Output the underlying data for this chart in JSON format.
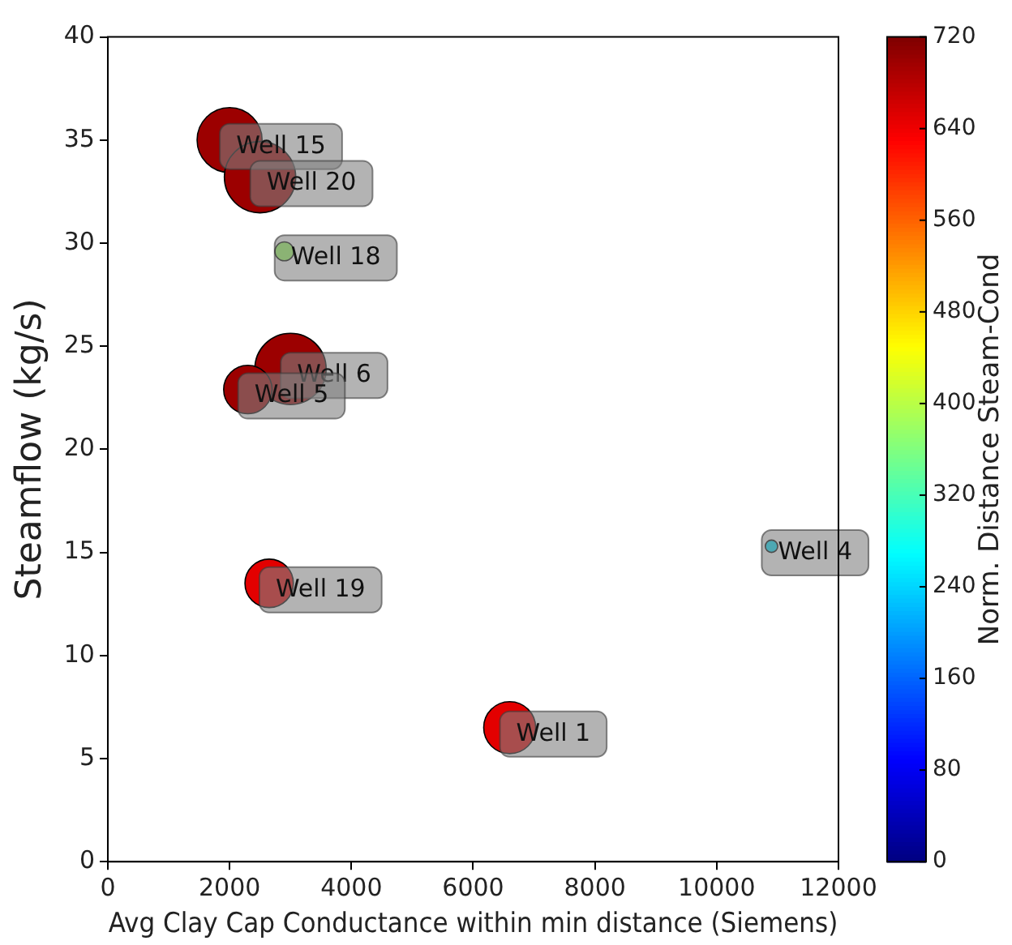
{
  "chart_data": {
    "type": "bubble",
    "xlabel": "Avg Clay Cap Conductance within min distance (Siemens)",
    "ylabel": "Steamflow (kg/s)",
    "clabel": "Norm. Distance Steam-Cond",
    "x": [
      2000,
      2500,
      2900,
      3000,
      2300,
      2650,
      6600,
      10900
    ],
    "values": [
      35,
      33.2,
      29.6,
      23.9,
      22.9,
      13.5,
      6.5,
      15.3
    ],
    "sizes": [
      0.83,
      1,
      0.07,
      1,
      0.46,
      0.46,
      0.53,
      0.03
    ],
    "cvalues": [
      700,
      700,
      380,
      700,
      700,
      650,
      650,
      250
    ],
    "clim": [
      0,
      720
    ],
    "cticks": [
      0,
      80,
      160,
      240,
      320,
      400,
      480,
      560,
      640,
      720
    ],
    "xlim": [
      0,
      12000
    ],
    "xticks": [
      0,
      2000,
      4000,
      6000,
      8000,
      10000,
      12000
    ],
    "ylim": [
      0,
      40
    ],
    "yticks": [
      0,
      5,
      10,
      15,
      20,
      25,
      30,
      35,
      40
    ],
    "grid": false,
    "legend": false,
    "annotations": [
      {
        "text": "Well 15",
        "x": 2000,
        "y": 35
      },
      {
        "text": "Well 20",
        "x": 2500,
        "y": 33.2
      },
      {
        "text": "Well 18",
        "x": 2900,
        "y": 29.6
      },
      {
        "text": "Well 6",
        "x": 3000,
        "y": 23.9
      },
      {
        "text": "Well 5",
        "x": 2300,
        "y": 22.9
      },
      {
        "text": "Well 19",
        "x": 2650,
        "y": 13.5
      },
      {
        "text": "Well 1",
        "x": 6600,
        "y": 6.5
      },
      {
        "text": "Well 4",
        "x": 10900,
        "y": 15.3
      }
    ]
  }
}
